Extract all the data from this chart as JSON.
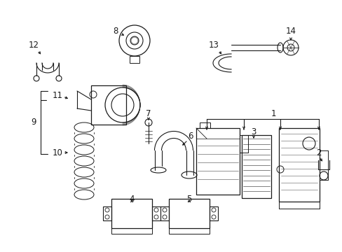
{
  "bg_color": "#ffffff",
  "fg_color": "#1a1a1a",
  "figsize": [
    4.89,
    3.6
  ],
  "dpi": 100,
  "xlim": [
    0,
    489
  ],
  "ylim": [
    0,
    360
  ]
}
